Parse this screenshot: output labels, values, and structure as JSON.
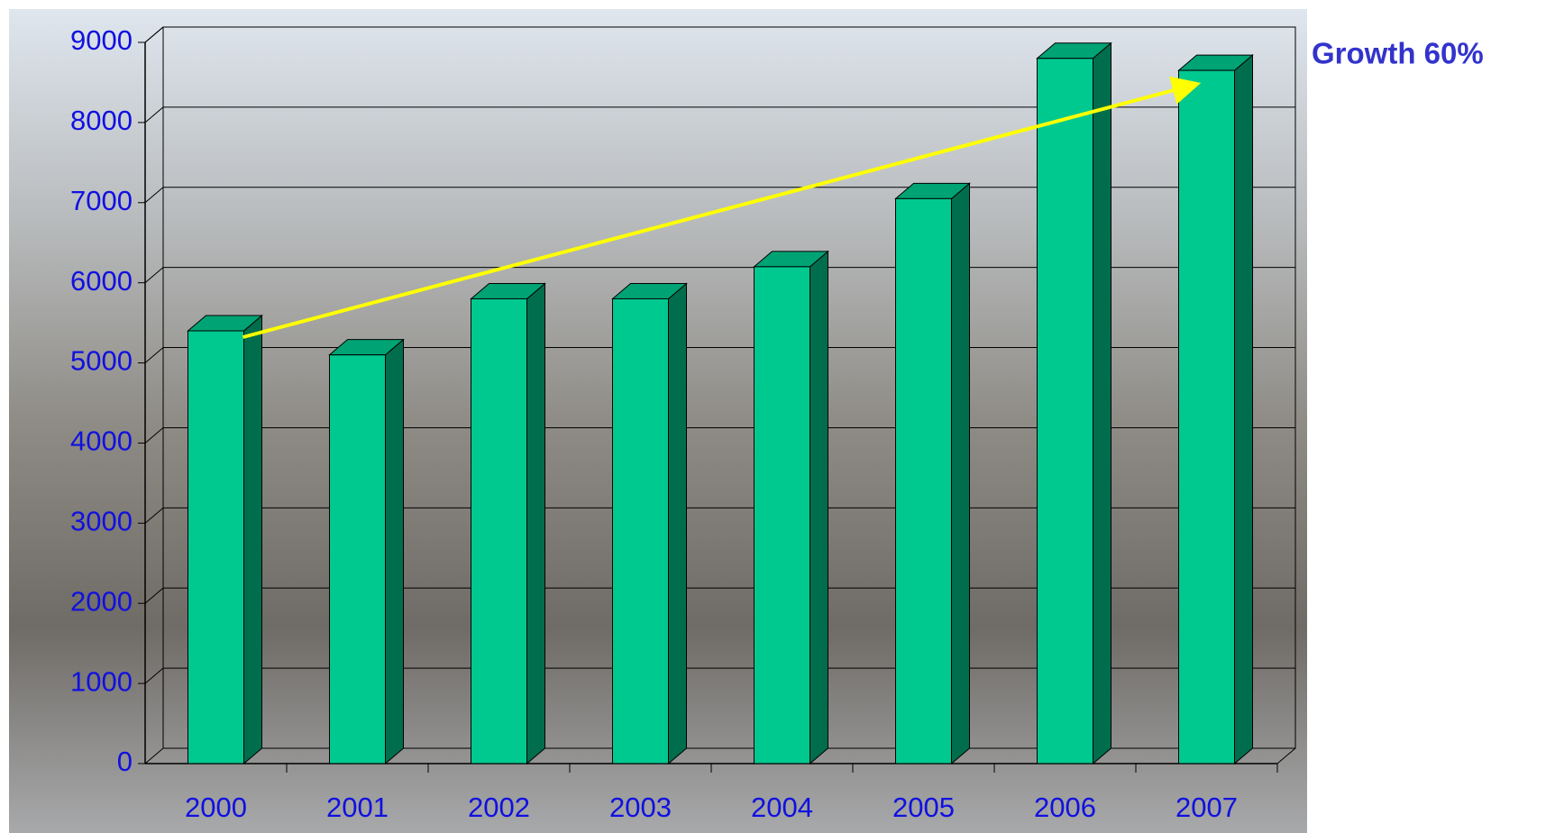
{
  "chart_data": {
    "type": "bar3d",
    "annotation": "Growth 60%",
    "categories": [
      "2000",
      "2001",
      "2002",
      "2003",
      "2004",
      "2005",
      "2006",
      "2007"
    ],
    "values": [
      5400,
      5100,
      5800,
      5800,
      6200,
      7050,
      8800,
      8650
    ],
    "color": "#00c990",
    "ylim": [
      0,
      9000
    ],
    "yticks": [
      0,
      1000,
      2000,
      3000,
      4000,
      5000,
      6000,
      7000,
      8000,
      9000
    ],
    "grid": true
  }
}
